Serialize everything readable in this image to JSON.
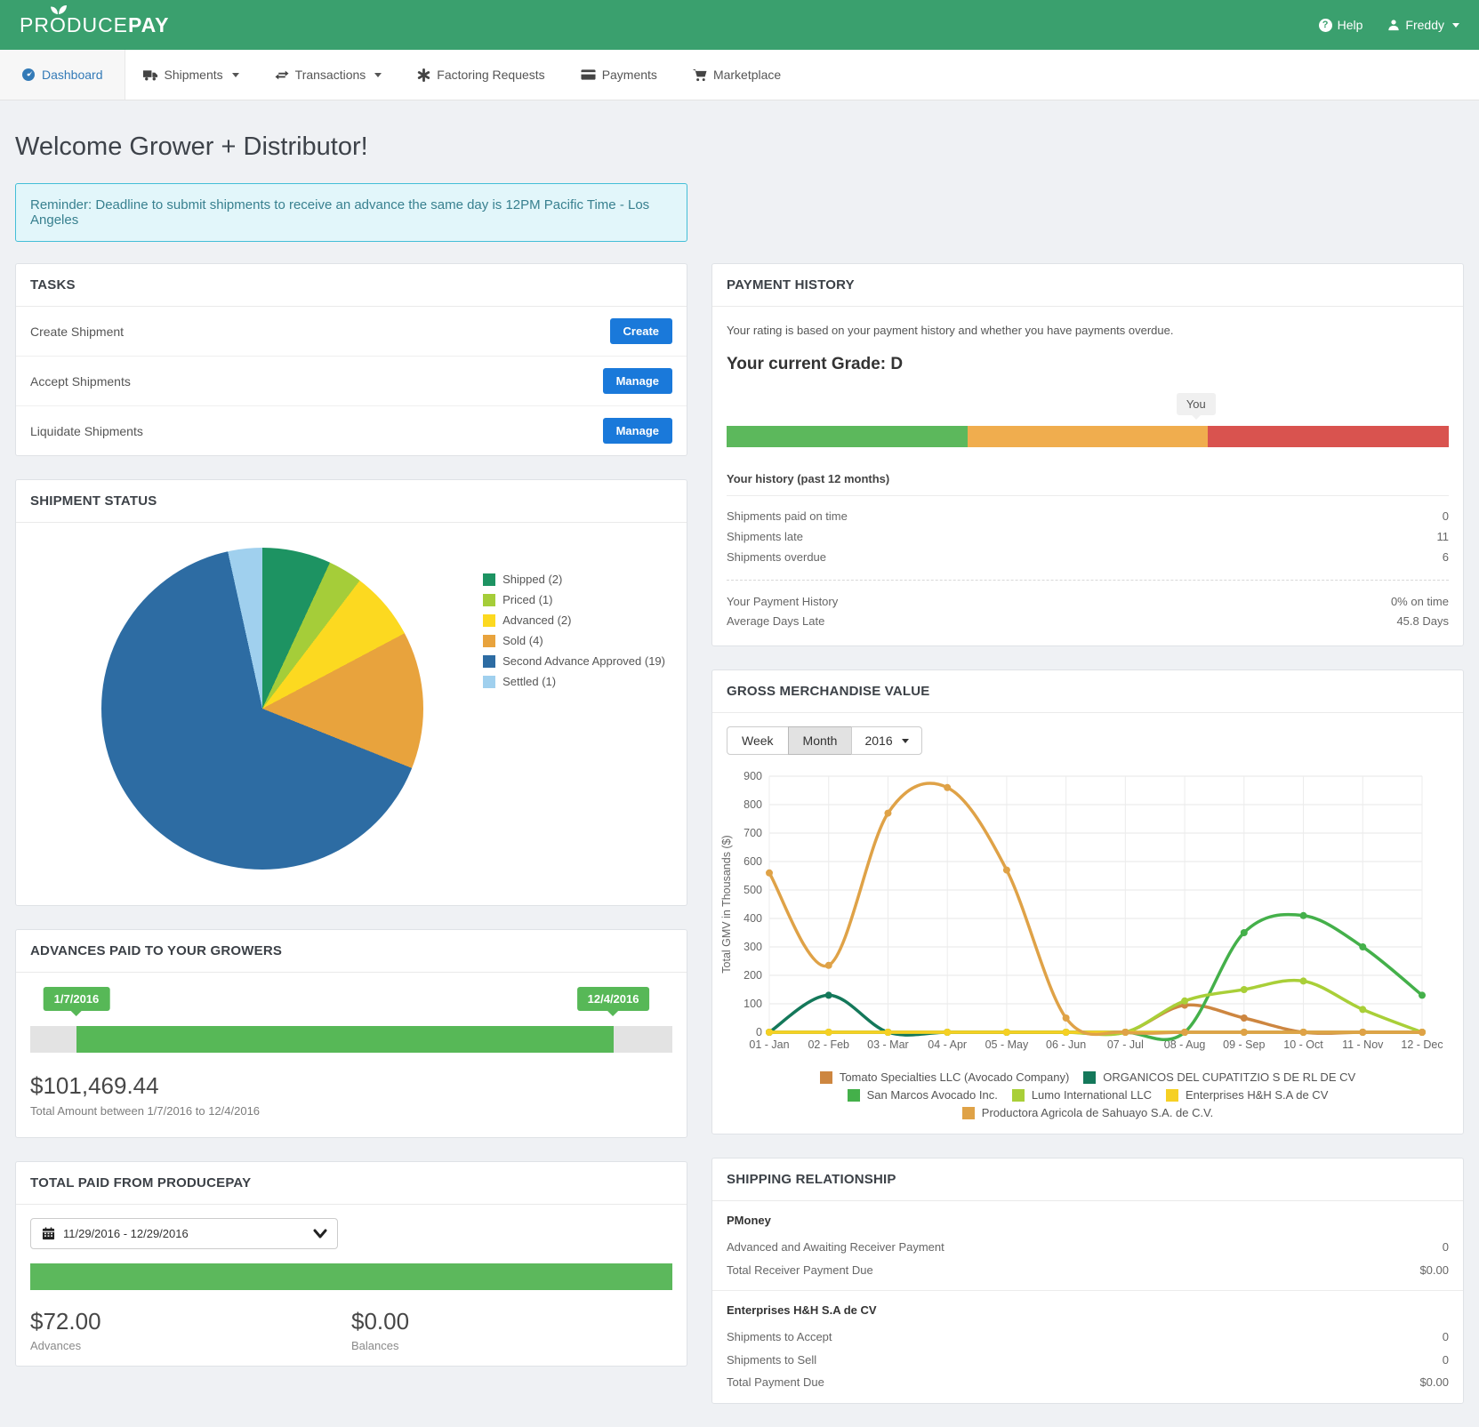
{
  "header": {
    "brand_pre": "PR",
    "brand_o": "O",
    "brand_mid": "DUCE",
    "brand_bold": "PAY",
    "help_label": "Help",
    "user_label": "Freddy",
    "brand_green": "#3aa06e"
  },
  "nav": {
    "items": [
      {
        "label": "Dashboard",
        "active": true
      },
      {
        "label": "Shipments",
        "active": false
      },
      {
        "label": "Transactions",
        "active": false
      },
      {
        "label": "Factoring Requests",
        "active": false
      },
      {
        "label": "Payments",
        "active": false
      },
      {
        "label": "Marketplace",
        "active": false
      }
    ]
  },
  "welcome": {
    "title": "Welcome Grower + Distributor!",
    "reminder": "Reminder: Deadline to submit shipments to receive an advance the same day is 12PM Pacific Time - Los Angeles"
  },
  "tasks": {
    "title": "TASKS",
    "rows": [
      {
        "label": "Create Shipment",
        "button": "Create"
      },
      {
        "label": "Accept Shipments",
        "button": "Manage"
      },
      {
        "label": "Liquidate Shipments",
        "button": "Manage"
      }
    ]
  },
  "shipment_status": {
    "title": "SHIPMENT STATUS"
  },
  "advances": {
    "title": "ADVANCES PAID TO YOUR GROWERS",
    "start_date": "1/7/2016",
    "end_date": "12/4/2016",
    "amount": "$101,469.44",
    "caption": "Total Amount between 1/7/2016 to 12/4/2016"
  },
  "total_paid": {
    "title": "TOTAL PAID FROM PRODUCEPAY",
    "date_range": "11/29/2016 - 12/29/2016",
    "advances_value": "$72.00",
    "advances_label": "Advances",
    "balances_value": "$0.00",
    "balances_label": "Balances"
  },
  "payment_history": {
    "title": "PAYMENT HISTORY",
    "description": "Your rating is based on your payment history and whether you have payments overdue.",
    "grade_heading": "Your current Grade: D",
    "you_label": "You",
    "you_position_pct": 65,
    "bar_colors": [
      "#5cb85c",
      "#f0ad4e",
      "#d9534f"
    ],
    "history_heading": "Your history (past 12 months)",
    "stats": [
      {
        "label": "Shipments paid on time",
        "value": "0"
      },
      {
        "label": "Shipments late",
        "value": "11"
      },
      {
        "label": "Shipments overdue",
        "value": "6"
      }
    ],
    "summary": [
      {
        "label": "Your Payment History",
        "value": "0% on time"
      },
      {
        "label": "Average Days Late",
        "value": "45.8 Days"
      }
    ]
  },
  "gmv": {
    "title": "GROSS MERCHANDISE VALUE",
    "controls": {
      "week": "Week",
      "month": "Month",
      "year": "2016"
    }
  },
  "chart_data": [
    {
      "type": "pie",
      "title": "Shipment Status",
      "labels": [
        "Shipped",
        "Priced",
        "Advanced",
        "Sold",
        "Second Advance Approved",
        "Settled"
      ],
      "values": [
        2,
        1,
        2,
        4,
        19,
        1
      ],
      "colors": [
        "#1d9362",
        "#a5cd39",
        "#fcd920",
        "#e8a33d",
        "#2d6ca3",
        "#a0d0ee"
      ],
      "legend_position": "right"
    },
    {
      "type": "line",
      "x": [
        "01 - Jan",
        "02 - Feb",
        "03 - Mar",
        "04 - Apr",
        "05 - May",
        "06 - Jun",
        "07 - Jul",
        "08 - Aug",
        "09 - Sep",
        "10 - Oct",
        "11 - Nov",
        "12 - Dec"
      ],
      "ylabel": "Total GMV in Thousands ($)",
      "ylim": [
        0,
        900
      ],
      "ytick": 100,
      "grid": true,
      "legend_position": "bottom",
      "series": [
        {
          "name": "Tomato Specialties LLC (Avocado Company)",
          "color": "#cd8640",
          "values": [
            0,
            0,
            0,
            0,
            0,
            0,
            0,
            95,
            50,
            0,
            0,
            0
          ]
        },
        {
          "name": "ORGANICOS DEL CUPATITZIO S DE RL DE CV",
          "color": "#14785a",
          "values": [
            0,
            130,
            0,
            0,
            0,
            0,
            0,
            0,
            0,
            0,
            0,
            0
          ]
        },
        {
          "name": "San Marcos Avocado Inc.",
          "color": "#44b04a",
          "values": [
            0,
            0,
            0,
            0,
            0,
            0,
            0,
            0,
            350,
            410,
            300,
            130
          ]
        },
        {
          "name": "Lumo International LLC",
          "color": "#a9cf38",
          "values": [
            0,
            0,
            0,
            0,
            0,
            0,
            0,
            110,
            150,
            180,
            80,
            0
          ]
        },
        {
          "name": "Enterprises H&H S.A de CV",
          "color": "#f6d023",
          "values": [
            0,
            0,
            0,
            0,
            0,
            0,
            0,
            0,
            0,
            0,
            0,
            0
          ]
        },
        {
          "name": "Productora Agricola de Sahuayo S.A. de C.V.",
          "color": "#dfa247",
          "values": [
            560,
            235,
            770,
            860,
            570,
            50,
            0,
            0,
            0,
            0,
            0,
            0
          ]
        }
      ]
    }
  ],
  "shipping": {
    "title": "SHIPPING RELATIONSHIP",
    "sections": [
      {
        "name": "PMoney",
        "rows": [
          {
            "label": "Advanced and Awaiting Receiver Payment",
            "value": "0"
          },
          {
            "label": "Total Receiver Payment Due",
            "value": "$0.00"
          }
        ]
      },
      {
        "name": "Enterprises H&H S.A de CV",
        "rows": [
          {
            "label": "Shipments to Accept",
            "value": "0"
          },
          {
            "label": "Shipments to Sell",
            "value": "0"
          },
          {
            "label": "Total Payment Due",
            "value": "$0.00"
          }
        ]
      }
    ]
  }
}
